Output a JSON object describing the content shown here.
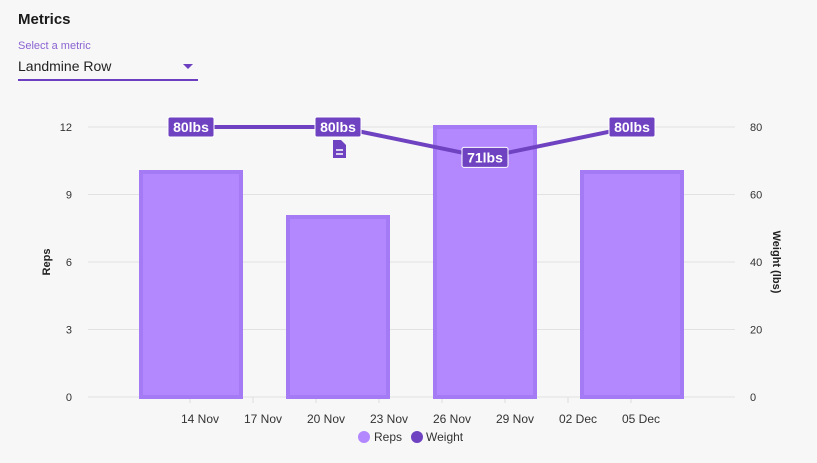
{
  "header": {
    "title": "Metrics"
  },
  "metric_select": {
    "label": "Select a metric",
    "value": "Landmine Row"
  },
  "chart_data": {
    "type": "bar+line",
    "x_ticks": [
      "14 Nov",
      "17 Nov",
      "20 Nov",
      "23 Nov",
      "26 Nov",
      "29 Nov",
      "02 Dec",
      "05 Dec"
    ],
    "series": [
      {
        "name": "Reps",
        "type": "bar",
        "axis": "left",
        "color": "#b388ff",
        "values": [
          10,
          8,
          12,
          10
        ]
      },
      {
        "name": "Weight",
        "type": "line",
        "axis": "right",
        "color": "#6f42c1",
        "values": [
          80,
          80,
          71,
          80
        ],
        "labels": [
          "80lbs",
          "80lbs",
          "71lbs",
          "80lbs"
        ]
      }
    ],
    "ylabel": "Reps",
    "y2label": "Weight (lbs)",
    "ylim": [
      0,
      12
    ],
    "yticks": [
      0,
      3,
      6,
      9,
      12
    ],
    "y2lim": [
      0,
      80
    ],
    "y2ticks": [
      0,
      20,
      40,
      60,
      80
    ],
    "grid": true,
    "legend": "bottom-center"
  }
}
